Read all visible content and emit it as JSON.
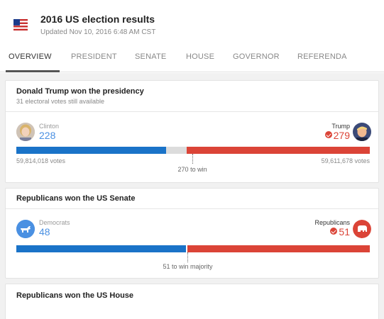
{
  "header": {
    "title": "2016 US election results",
    "updated": "Updated Nov 10, 2016 6:48 AM CST",
    "flag_icon": "us-flag-icon"
  },
  "tabs": [
    {
      "label": "OVERVIEW",
      "active": true
    },
    {
      "label": "PRESIDENT",
      "active": false
    },
    {
      "label": "SENATE",
      "active": false
    },
    {
      "label": "HOUSE",
      "active": false
    },
    {
      "label": "GOVERNOR",
      "active": false
    },
    {
      "label": "REFERENDA",
      "active": false
    }
  ],
  "president": {
    "title": "Donald Trump won the presidency",
    "subtitle": "31 electoral votes still available",
    "left": {
      "name": "Clinton",
      "value": "228",
      "votes": "59,814,018 votes"
    },
    "right": {
      "name": "Trump",
      "value": "279",
      "votes": "59,611,678 votes"
    },
    "threshold_label": "270 to win",
    "total": 538,
    "left_share": 228,
    "right_share": 279,
    "threshold": 270
  },
  "senate": {
    "title": "Republicans won the US Senate",
    "left": {
      "name": "Democrats",
      "value": "48"
    },
    "right": {
      "name": "Republicans",
      "value": "51"
    },
    "threshold_label": "51 to win majority",
    "total": 99,
    "left_share": 48,
    "right_share": 51
  },
  "house": {
    "title": "Republicans won the US House"
  },
  "colors": {
    "democrat": "#1a73c8",
    "republican": "#db4437",
    "undecided": "#dcdcdc"
  }
}
